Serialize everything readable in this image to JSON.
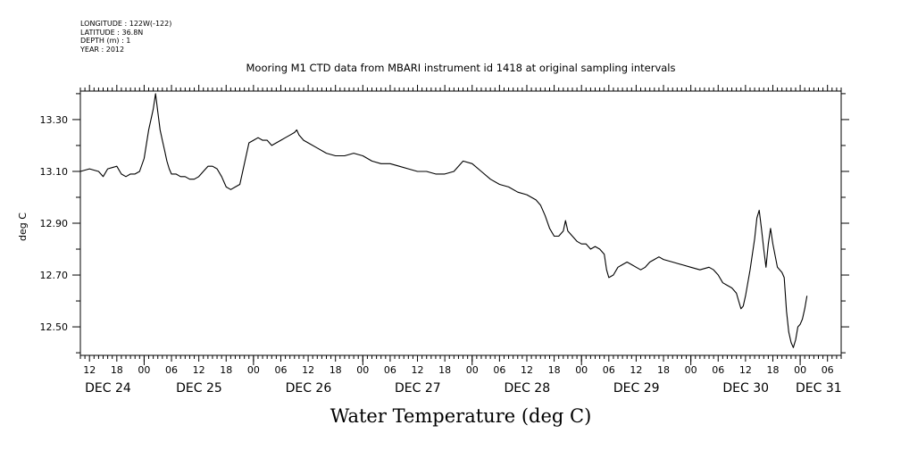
{
  "header": {
    "meta_lines": [
      "LONGITUDE : 122W(-122)",
      "LATITUDE : 36.8N",
      "DEPTH (m) : 1",
      "YEAR : 2012"
    ]
  },
  "chart_data": {
    "type": "line",
    "title": "Mooring M1 CTD data from MBARI instrument id 1418 at original sampling intervals",
    "xlabel": "Water Temperature (deg C)",
    "ylabel": "deg C",
    "ylim": [
      12.39,
      13.41
    ],
    "y_ticks": [
      "12.50",
      "12.70",
      "12.90",
      "13.10",
      "13.30"
    ],
    "x_unit": "hours since DEC 24 00:00 (2012)",
    "xlim": [
      -14,
      153
    ],
    "x_tick_labels": [
      {
        "x": -12,
        "label": "12"
      },
      {
        "x": -6,
        "label": "18"
      },
      {
        "x": 0,
        "label": "00"
      },
      {
        "x": 6,
        "label": "06"
      },
      {
        "x": 12,
        "label": "12"
      },
      {
        "x": 18,
        "label": "18"
      },
      {
        "x": 24,
        "label": "00"
      },
      {
        "x": 30,
        "label": "06"
      },
      {
        "x": 36,
        "label": "12"
      },
      {
        "x": 42,
        "label": "18"
      },
      {
        "x": 48,
        "label": "00"
      },
      {
        "x": 54,
        "label": "06"
      },
      {
        "x": 60,
        "label": "12"
      },
      {
        "x": 66,
        "label": "18"
      },
      {
        "x": 72,
        "label": "00"
      },
      {
        "x": 78,
        "label": "06"
      },
      {
        "x": 84,
        "label": "12"
      },
      {
        "x": 90,
        "label": "18"
      },
      {
        "x": 96,
        "label": "00"
      },
      {
        "x": 102,
        "label": "06"
      },
      {
        "x": 108,
        "label": "12"
      },
      {
        "x": 114,
        "label": "18"
      },
      {
        "x": 120,
        "label": "00"
      },
      {
        "x": 126,
        "label": "06"
      },
      {
        "x": 132,
        "label": "12"
      },
      {
        "x": 138,
        "label": "18"
      },
      {
        "x": 144,
        "label": "00"
      },
      {
        "x": 150,
        "label": "06"
      }
    ],
    "day_labels": [
      {
        "x": -13,
        "label": "DEC 24"
      },
      {
        "x": 7,
        "label": "DEC 25"
      },
      {
        "x": 31,
        "label": "DEC 26"
      },
      {
        "x": 55,
        "label": "DEC 27"
      },
      {
        "x": 79,
        "label": "DEC 28"
      },
      {
        "x": 103,
        "label": "DEC 29"
      },
      {
        "x": 127,
        "label": "DEC 30"
      },
      {
        "x": 143,
        "label": "DEC 31"
      }
    ],
    "series": [
      {
        "points": [
          [
            -14,
            13.1
          ],
          [
            -12,
            13.11
          ],
          [
            -10,
            13.1
          ],
          [
            -9,
            13.08
          ],
          [
            -8,
            13.11
          ],
          [
            -6,
            13.12
          ],
          [
            -5,
            13.09
          ],
          [
            -4,
            13.08
          ],
          [
            -3,
            13.09
          ],
          [
            -2,
            13.09
          ],
          [
            -1,
            13.1
          ],
          [
            0,
            13.15
          ],
          [
            1,
            13.26
          ],
          [
            2,
            13.34
          ],
          [
            2.5,
            13.4
          ],
          [
            3,
            13.33
          ],
          [
            3.5,
            13.26
          ],
          [
            4,
            13.22
          ],
          [
            4.5,
            13.18
          ],
          [
            5,
            13.14
          ],
          [
            5.5,
            13.11
          ],
          [
            6,
            13.09
          ],
          [
            7,
            13.09
          ],
          [
            8,
            13.08
          ],
          [
            9,
            13.08
          ],
          [
            10,
            13.07
          ],
          [
            11,
            13.07
          ],
          [
            12,
            13.08
          ],
          [
            13,
            13.1
          ],
          [
            14,
            13.12
          ],
          [
            15,
            13.12
          ],
          [
            16,
            13.11
          ],
          [
            17,
            13.08
          ],
          [
            18,
            13.04
          ],
          [
            19,
            13.03
          ],
          [
            20,
            13.04
          ],
          [
            21,
            13.05
          ],
          [
            22,
            13.13
          ],
          [
            23,
            13.21
          ],
          [
            24,
            13.22
          ],
          [
            25,
            13.23
          ],
          [
            26,
            13.22
          ],
          [
            27,
            13.22
          ],
          [
            28,
            13.2
          ],
          [
            29,
            13.21
          ],
          [
            30,
            13.22
          ],
          [
            31,
            13.23
          ],
          [
            32,
            13.24
          ],
          [
            33,
            13.25
          ],
          [
            33.5,
            13.26
          ],
          [
            34,
            13.24
          ],
          [
            35,
            13.22
          ],
          [
            36,
            13.21
          ],
          [
            38,
            13.19
          ],
          [
            40,
            13.17
          ],
          [
            42,
            13.16
          ],
          [
            44,
            13.16
          ],
          [
            46,
            13.17
          ],
          [
            48,
            13.16
          ],
          [
            50,
            13.14
          ],
          [
            52,
            13.13
          ],
          [
            54,
            13.13
          ],
          [
            56,
            13.12
          ],
          [
            58,
            13.11
          ],
          [
            60,
            13.1
          ],
          [
            62,
            13.1
          ],
          [
            64,
            13.09
          ],
          [
            66,
            13.09
          ],
          [
            68,
            13.1
          ],
          [
            69,
            13.12
          ],
          [
            70,
            13.14
          ],
          [
            72,
            13.13
          ],
          [
            74,
            13.1
          ],
          [
            76,
            13.07
          ],
          [
            78,
            13.05
          ],
          [
            80,
            13.04
          ],
          [
            82,
            13.02
          ],
          [
            84,
            13.01
          ],
          [
            86,
            12.99
          ],
          [
            87,
            12.97
          ],
          [
            88,
            12.93
          ],
          [
            89,
            12.88
          ],
          [
            90,
            12.85
          ],
          [
            91,
            12.85
          ],
          [
            92,
            12.87
          ],
          [
            92.5,
            12.91
          ],
          [
            93,
            12.87
          ],
          [
            94,
            12.85
          ],
          [
            95,
            12.83
          ],
          [
            96,
            12.82
          ],
          [
            97,
            12.82
          ],
          [
            98,
            12.8
          ],
          [
            99,
            12.81
          ],
          [
            100,
            12.8
          ],
          [
            101,
            12.78
          ],
          [
            101.5,
            12.72
          ],
          [
            102,
            12.69
          ],
          [
            103,
            12.7
          ],
          [
            104,
            12.73
          ],
          [
            105,
            12.74
          ],
          [
            106,
            12.75
          ],
          [
            107,
            12.74
          ],
          [
            108,
            12.73
          ],
          [
            109,
            12.72
          ],
          [
            110,
            12.73
          ],
          [
            111,
            12.75
          ],
          [
            112,
            12.76
          ],
          [
            113,
            12.77
          ],
          [
            114,
            12.76
          ],
          [
            116,
            12.75
          ],
          [
            118,
            12.74
          ],
          [
            120,
            12.73
          ],
          [
            122,
            12.72
          ],
          [
            124,
            12.73
          ],
          [
            125,
            12.72
          ],
          [
            126,
            12.7
          ],
          [
            127,
            12.67
          ],
          [
            128,
            12.66
          ],
          [
            129,
            12.65
          ],
          [
            130,
            12.63
          ],
          [
            130.5,
            12.6
          ],
          [
            131,
            12.57
          ],
          [
            131.5,
            12.58
          ],
          [
            132,
            12.62
          ],
          [
            133,
            12.72
          ],
          [
            134,
            12.84
          ],
          [
            134.5,
            12.92
          ],
          [
            135,
            12.95
          ],
          [
            135.5,
            12.88
          ],
          [
            136,
            12.8
          ],
          [
            136.5,
            12.73
          ],
          [
            137,
            12.82
          ],
          [
            137.5,
            12.88
          ],
          [
            138,
            12.82
          ],
          [
            139,
            12.73
          ],
          [
            140,
            12.71
          ],
          [
            140.5,
            12.69
          ],
          [
            141,
            12.56
          ],
          [
            141.5,
            12.48
          ],
          [
            142,
            12.44
          ],
          [
            142.5,
            12.42
          ],
          [
            143,
            12.45
          ],
          [
            143.5,
            12.5
          ],
          [
            144,
            12.51
          ],
          [
            144.5,
            12.53
          ],
          [
            145,
            12.57
          ],
          [
            145.5,
            12.62
          ]
        ]
      }
    ]
  }
}
